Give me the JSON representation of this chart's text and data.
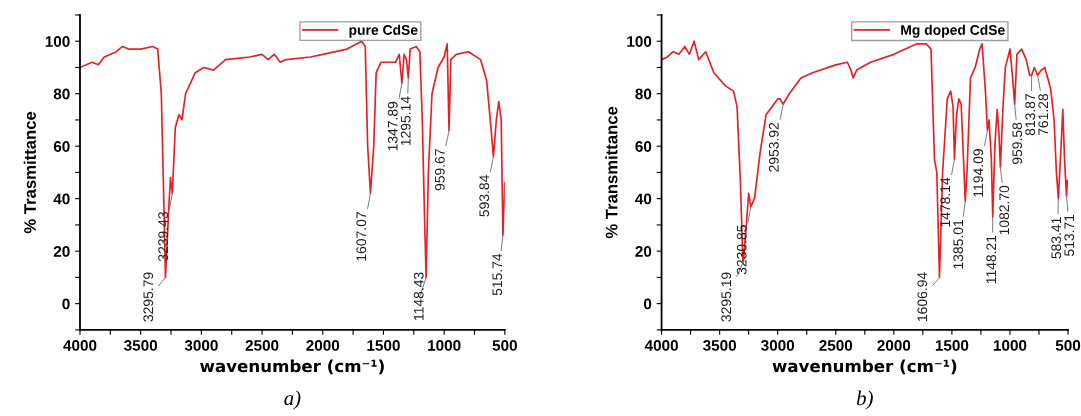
{
  "chart_data": [
    {
      "type": "line",
      "title": "a)",
      "xlabel": "wavenumber (cm⁻¹)",
      "ylabel": "% Trasmittance",
      "legend": "top",
      "grid": false,
      "marker": "none",
      "line_style": "solid",
      "xlim": [
        4000,
        500
      ],
      "ylim": [
        -10,
        110
      ],
      "xticks": [
        4000,
        {
          "value": 3750,
          "label": null
        },
        3500,
        {
          "value": 3250,
          "label": null
        },
        3000,
        {
          "value": 2750,
          "label": null
        },
        2500,
        {
          "value": 2250,
          "label": null
        },
        2000,
        {
          "value": 1750,
          "label": null
        },
        1500,
        {
          "value": 1250,
          "label": null
        },
        1000,
        {
          "value": 750,
          "label": null
        },
        500
      ],
      "yticks": [
        {
          "value": -10,
          "label": null
        },
        0,
        {
          "value": 10,
          "label": null
        },
        20,
        {
          "value": 30,
          "label": null
        },
        40,
        {
          "value": 50,
          "label": null
        },
        60,
        {
          "value": 70,
          "label": null
        },
        80,
        {
          "value": 90,
          "label": null
        },
        100,
        {
          "value": 110,
          "label": null
        }
      ],
      "series": [
        {
          "name": "pure CdSe",
          "color": "#e32227",
          "x": [
            4000,
            3900,
            3850,
            3800,
            3700,
            3650,
            3600,
            3500,
            3400,
            3360,
            3330,
            3310,
            3295.79,
            3270,
            3255,
            3239.43,
            3215,
            3185,
            3160,
            3130,
            3050,
            2980,
            2900,
            2800,
            2600,
            2500,
            2450,
            2400,
            2350,
            2300,
            2100,
            2000,
            1800,
            1680,
            1650,
            1630,
            1607.07,
            1580,
            1560,
            1520,
            1400,
            1370,
            1347.89,
            1330,
            1310,
            1295.14,
            1280,
            1230,
            1200,
            1180,
            1160,
            1148.43,
            1130,
            1100,
            1050,
            1000,
            975,
            959.67,
            945,
            900,
            800,
            700,
            650,
            620,
            593.84,
            570,
            550,
            530,
            515.74,
            505,
            500
          ],
          "values": [
            90,
            92,
            91,
            94,
            96,
            98,
            97,
            97,
            98,
            97,
            80,
            40,
            10,
            35,
            48,
            42,
            67,
            72,
            70,
            80,
            88,
            90,
            89,
            93,
            94,
            95,
            93,
            95,
            92,
            93,
            94,
            95,
            97,
            100,
            98,
            60,
            42,
            60,
            88,
            92,
            92,
            95,
            84,
            95,
            93,
            86,
            97,
            98,
            96,
            70,
            30,
            10,
            50,
            80,
            90,
            94,
            99,
            66,
            93,
            95,
            96,
            93,
            85,
            70,
            56,
            70,
            77,
            70,
            26,
            40,
            46
          ]
        }
      ],
      "annotations": [
        {
          "text": "3295.79",
          "x": 3295.79,
          "y": 10
        },
        {
          "text": "3239.43",
          "x": 3239.43,
          "y": 42
        },
        {
          "text": "1607.07",
          "x": 1607.07,
          "y": 42
        },
        {
          "text": "1347.89",
          "x": 1347.89,
          "y": 84
        },
        {
          "text": "1295.14",
          "x": 1295.14,
          "y": 86
        },
        {
          "text": "1148.43",
          "x": 1148.43,
          "y": 10
        },
        {
          "text": "959.67",
          "x": 959.67,
          "y": 66
        },
        {
          "text": "593.84",
          "x": 593.84,
          "y": 56
        },
        {
          "text": "515.74",
          "x": 515.74,
          "y": 26
        }
      ]
    },
    {
      "type": "line",
      "title": "b)",
      "xlabel": "wavenumber (cm⁻¹)",
      "ylabel": "% Transmittance",
      "legend": "top",
      "grid": false,
      "marker": "none",
      "line_style": "solid",
      "xlim": [
        4000,
        500
      ],
      "ylim": [
        -10,
        110
      ],
      "xticks": [
        4000,
        {
          "value": 3750,
          "label": null
        },
        3500,
        {
          "value": 3250,
          "label": null
        },
        3000,
        {
          "value": 2750,
          "label": null
        },
        2500,
        {
          "value": 2250,
          "label": null
        },
        2000,
        {
          "value": 1750,
          "label": null
        },
        1500,
        {
          "value": 1250,
          "label": null
        },
        1000,
        {
          "value": 750,
          "label": null
        },
        500
      ],
      "yticks": [
        {
          "value": -10,
          "label": null
        },
        0,
        {
          "value": 10,
          "label": null
        },
        20,
        {
          "value": 30,
          "label": null
        },
        40,
        {
          "value": 50,
          "label": null
        },
        60,
        {
          "value": 70,
          "label": null
        },
        80,
        {
          "value": 90,
          "label": null
        },
        100,
        {
          "value": 110,
          "label": null
        }
      ],
      "series": [
        {
          "name": "Mg doped CdSe",
          "color": "#e32227",
          "x": [
            4000,
            3950,
            3900,
            3850,
            3800,
            3760,
            3720,
            3680,
            3620,
            3550,
            3450,
            3380,
            3350,
            3320,
            3300,
            3295.19,
            3270,
            3250,
            3230.85,
            3200,
            3150,
            3100,
            3000,
            2980,
            2953.92,
            2900,
            2800,
            2700,
            2500,
            2400,
            2370,
            2350,
            2320,
            2200,
            2000,
            1800,
            1720,
            1680,
            1650,
            1630,
            1606.94,
            1580,
            1540,
            1510,
            1490,
            1478.14,
            1460,
            1440,
            1420,
            1400,
            1385.01,
            1370,
            1340,
            1300,
            1260,
            1240,
            1210,
            1194.09,
            1180,
            1160,
            1148.21,
            1130,
            1110,
            1095,
            1082.7,
            1060,
            1040,
            1000,
            975,
            959.58,
            940,
            900,
            860,
            830,
            813.87,
            790,
            761.28,
            730,
            700,
            650,
            620,
            600,
            583.41,
            560,
            545,
            530,
            513.71,
            505,
            500
          ],
          "values": [
            93,
            94,
            96,
            95,
            98,
            95,
            100,
            93,
            96,
            88,
            83,
            81,
            75,
            45,
            16,
            16,
            30,
            42,
            37,
            40,
            58,
            72,
            78,
            78,
            76,
            80,
            86,
            88,
            91,
            92,
            89,
            86,
            89,
            92,
            95,
            99,
            99,
            97,
            55,
            50,
            10,
            50,
            78,
            81,
            75,
            55,
            72,
            78,
            76,
            55,
            39,
            50,
            86,
            90,
            97,
            99,
            80,
            66,
            70,
            55,
            33,
            60,
            74,
            65,
            52,
            75,
            90,
            97,
            85,
            76,
            95,
            97,
            93,
            87,
            87,
            90,
            87,
            89,
            90,
            82,
            70,
            50,
            40,
            60,
            74,
            55,
            41,
            47,
            46
          ]
        }
      ],
      "annotations": [
        {
          "text": "3295.19",
          "x": 3295.19,
          "y": 16
        },
        {
          "text": "3230.85",
          "x": 3230.85,
          "y": 37
        },
        {
          "text": "2953.92",
          "x": 2953.92,
          "y": 76
        },
        {
          "text": "1606.94",
          "x": 1606.94,
          "y": 10
        },
        {
          "text": "1478.14",
          "x": 1478.14,
          "y": 55
        },
        {
          "text": "1385.01",
          "x": 1385.01,
          "y": 39
        },
        {
          "text": "1194.09",
          "x": 1194.09,
          "y": 66
        },
        {
          "text": "1148.21",
          "x": 1148.21,
          "y": 33
        },
        {
          "text": "1082.70",
          "x": 1082.7,
          "y": 52
        },
        {
          "text": "959.58",
          "x": 959.58,
          "y": 76
        },
        {
          "text": "813.87",
          "x": 813.87,
          "y": 87
        },
        {
          "text": "761.28",
          "x": 761.28,
          "y": 87
        },
        {
          "text": "583.41",
          "x": 583.41,
          "y": 40
        },
        {
          "text": "513.71",
          "x": 513.71,
          "y": 41
        }
      ]
    }
  ]
}
